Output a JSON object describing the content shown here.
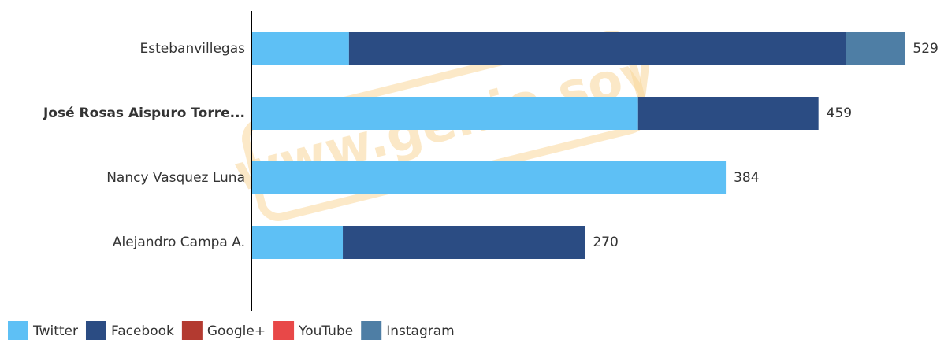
{
  "chart_data": {
    "type": "stacked-barh",
    "categories": [
      "Estebanvillegas",
      "José Rosas Aispuro Torre...",
      "Nancy Vasquez Luna",
      "Alejandro Campa A."
    ],
    "series": [
      {
        "name": "Twitter",
        "color": "#5ec0f5",
        "values": [
          79,
          313,
          384,
          74
        ]
      },
      {
        "name": "Facebook",
        "color": "#2b4c83",
        "values": [
          402,
          146,
          0,
          196
        ]
      },
      {
        "name": "Google+",
        "color": "#b33a30",
        "values": [
          0,
          0,
          0,
          0
        ]
      },
      {
        "name": "YouTube",
        "color": "#e84848",
        "values": [
          0,
          0,
          0,
          0
        ]
      },
      {
        "name": "Instagram",
        "color": "#4e7ea5",
        "values": [
          48,
          0,
          0,
          0
        ]
      }
    ],
    "totals": [
      529,
      459,
      384,
      270
    ],
    "xlim": [
      0,
      530
    ],
    "highlight_category": 1,
    "legend": "bottom-left",
    "watermark": "www.genio.soy"
  }
}
